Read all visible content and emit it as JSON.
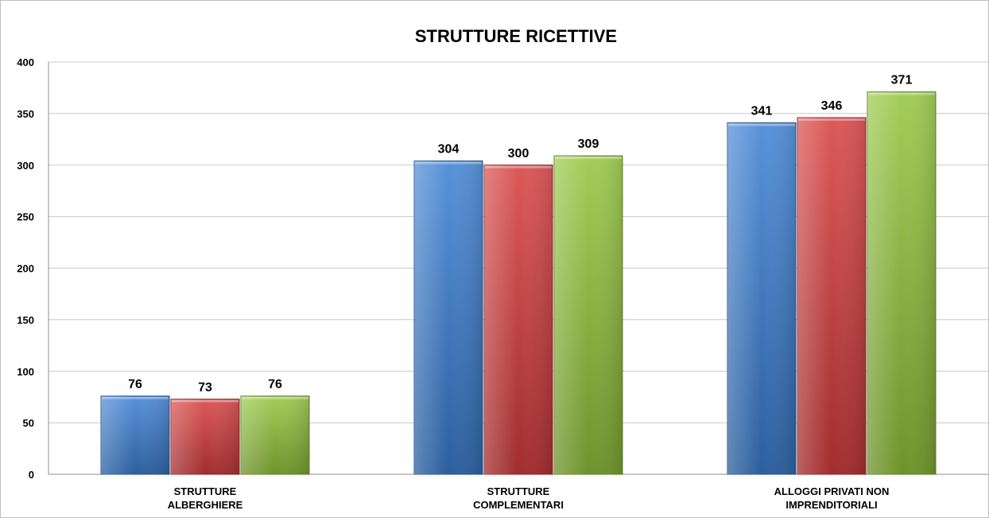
{
  "chart_data": {
    "type": "bar",
    "title": "STRUTTURE RICETTIVE",
    "xlabel": "",
    "ylabel": "",
    "ylim": [
      0,
      400
    ],
    "yticks": [
      0,
      50,
      100,
      150,
      200,
      250,
      300,
      350,
      400
    ],
    "grid": true,
    "legend": "none",
    "categories": [
      [
        "STRUTTURE",
        "ALBERGHIERE"
      ],
      [
        "STRUTTURE",
        "COMPLEMENTARI"
      ],
      [
        "ALLOGGI PRIVATI NON",
        "IMPRENDITORIALI"
      ]
    ],
    "series": [
      {
        "color": "#3a7fd2",
        "values": [
          76,
          304,
          341
        ]
      },
      {
        "color": "#d63c3c",
        "values": [
          73,
          300,
          346
        ]
      },
      {
        "color": "#92c43b",
        "values": [
          76,
          309,
          371
        ]
      }
    ]
  }
}
